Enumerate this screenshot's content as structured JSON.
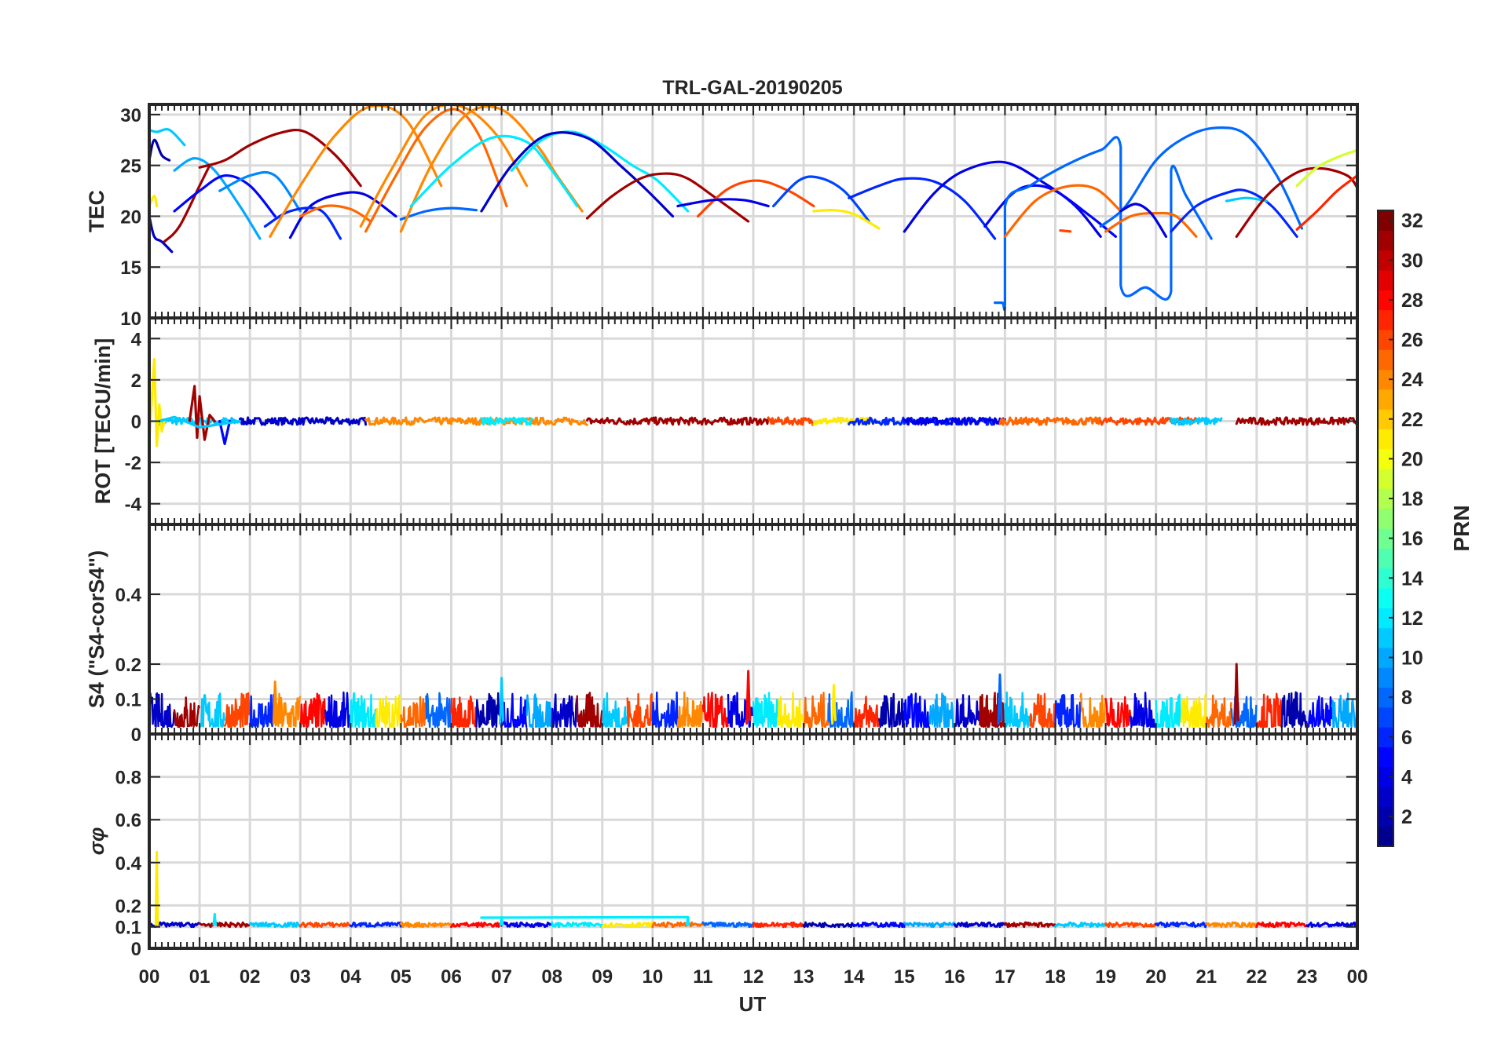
{
  "chart_data": {
    "type": "line",
    "title": "TRL-GAL-20190205",
    "xlabel": "UT",
    "x_ticks": [
      "00",
      "01",
      "02",
      "03",
      "04",
      "05",
      "06",
      "07",
      "08",
      "09",
      "10",
      "11",
      "12",
      "13",
      "14",
      "15",
      "16",
      "17",
      "18",
      "19",
      "20",
      "21",
      "22",
      "23",
      "00"
    ],
    "xlim": [
      0,
      24
    ],
    "grid": true,
    "colorbar": {
      "label": "PRN",
      "range": [
        1,
        32
      ],
      "ticks": [
        "2",
        "4",
        "6",
        "8",
        "10",
        "12",
        "14",
        "16",
        "18",
        "20",
        "22",
        "24",
        "26",
        "28",
        "30",
        "32"
      ],
      "colormap": [
        "#00008f",
        "#0000ff",
        "#0080ff",
        "#00ffff",
        "#80ff80",
        "#ffff00",
        "#ff8000",
        "#ff0000",
        "#800000"
      ]
    },
    "panels": [
      {
        "id": "tec",
        "ylabel": "TEC",
        "ylim": [
          10,
          31
        ],
        "y_ticks": [
          "10",
          "15",
          "20",
          "25",
          "30"
        ],
        "series": [
          {
            "prn": 3,
            "x": [
              0.0,
              0.1,
              0.25,
              0.45
            ],
            "y": [
              20,
              18,
              17.5,
              16.5
            ]
          },
          {
            "prn": 2,
            "x": [
              0.0,
              0.1,
              0.25,
              0.4
            ],
            "y": [
              25.5,
              27.5,
              26,
              25.5
            ]
          },
          {
            "prn": 11,
            "x": [
              0.0,
              0.15,
              0.4,
              0.7
            ],
            "y": [
              28.5,
              28.3,
              28.5,
              27
            ]
          },
          {
            "prn": 21,
            "x": [
              0.0,
              0.1,
              0.15
            ],
            "y": [
              21,
              22,
              21
            ]
          },
          {
            "prn": 10,
            "x": [
              0.5,
              0.9,
              1.3,
              1.8,
              2.2
            ],
            "y": [
              24.5,
              25.7,
              24.5,
              21,
              17.8
            ]
          },
          {
            "prn": 31,
            "x": [
              0.3,
              0.6,
              1.0,
              1.2
            ],
            "y": [
              17.5,
              19,
              23,
              25
            ]
          },
          {
            "prn": 5,
            "x": [
              0.5,
              1.0,
              1.5,
              2.0,
              2.5
            ],
            "y": [
              20.5,
              22.5,
              24,
              23,
              20
            ]
          },
          {
            "prn": 31,
            "x": [
              1.0,
              1.5,
              2.0,
              2.6,
              3.1,
              3.7,
              4.2
            ],
            "y": [
              24.8,
              25.5,
              27,
              28.2,
              28.3,
              26,
              23
            ]
          },
          {
            "prn": 9,
            "x": [
              1.4,
              2.0,
              2.5,
              3.0
            ],
            "y": [
              22.5,
              24,
              24,
              20.5
            ]
          },
          {
            "prn": 4,
            "x": [
              2.8,
              3.2,
              3.8,
              4.3,
              4.9
            ],
            "y": [
              17.9,
              21,
              22.2,
              22.1,
              20
            ]
          },
          {
            "prn": 6,
            "x": [
              2.3,
              2.8,
              3.4,
              3.8
            ],
            "y": [
              19,
              20.5,
              20.6,
              17.8
            ]
          },
          {
            "prn": 25,
            "x": [
              3.0,
              3.5,
              4.0,
              4.4
            ],
            "y": [
              20,
              21,
              20.7,
              19.5
            ]
          },
          {
            "prn": 24,
            "x": [
              2.4,
              3.0,
              3.7,
              4.4,
              5.1,
              5.8
            ],
            "y": [
              18,
              23,
              28,
              30.8,
              29.5,
              23
            ]
          },
          {
            "prn": 25,
            "x": [
              4.3,
              4.9,
              5.5,
              6.1,
              6.6,
              7.1
            ],
            "y": [
              18.5,
              24,
              28.8,
              30.5,
              27.5,
              21
            ]
          },
          {
            "prn": 8,
            "x": [
              5.0,
              5.5,
              6.0,
              6.5
            ],
            "y": [
              19.7,
              20.5,
              20.8,
              20.6
            ]
          },
          {
            "prn": 24,
            "x": [
              4.2,
              4.8,
              5.5,
              6.2,
              6.9,
              7.5
            ],
            "y": [
              19,
              24.5,
              30,
              30.8,
              28,
              23
            ]
          },
          {
            "prn": 24,
            "x": [
              5.0,
              5.6,
              6.3,
              7.0,
              7.7,
              8.1,
              8.6
            ],
            "y": [
              18.5,
              25,
              30,
              30.5,
              27,
              24,
              20.5
            ]
          },
          {
            "prn": 12,
            "x": [
              5.2,
              6.0,
              6.8,
              7.5,
              8.0,
              8.5
            ],
            "y": [
              21,
              25,
              27.7,
              27.3,
              24.5,
              21
            ]
          },
          {
            "prn": 12,
            "x": [
              7.2,
              7.8,
              8.4,
              9.0,
              9.6,
              10.1,
              10.7
            ],
            "y": [
              24.5,
              27.5,
              28.3,
              27,
              25,
              23.5,
              20.5
            ]
          },
          {
            "prn": 3,
            "x": [
              6.6,
              7.2,
              7.9,
              8.7,
              9.4,
              9.9,
              10.4
            ],
            "y": [
              20.5,
              25,
              28,
              27.7,
              24.8,
              22.5,
              20
            ]
          },
          {
            "prn": 31,
            "x": [
              8.7,
              9.2,
              9.8,
              10.3,
              10.7,
              11.2,
              11.9
            ],
            "y": [
              19.8,
              22,
              23.8,
              24.2,
              23.7,
              22,
              19.5
            ]
          },
          {
            "prn": 26,
            "x": [
              10.9,
              11.5,
              12.1,
              12.7,
              13.2
            ],
            "y": [
              20,
              22.7,
              23.5,
              22.5,
              21
            ]
          },
          {
            "prn": 4,
            "x": [
              10.5,
              11.2,
              11.8,
              12.3
            ],
            "y": [
              21,
              21.6,
              21.6,
              21
            ]
          },
          {
            "prn": 7,
            "x": [
              12.4,
              12.9,
              13.3,
              13.8,
              14.3
            ],
            "y": [
              21,
              23.5,
              23.8,
              22.5,
              19.5
            ]
          },
          {
            "prn": 21,
            "x": [
              13.2,
              13.6,
              14.0,
              14.5
            ],
            "y": [
              20.5,
              20.6,
              20.2,
              18.8
            ]
          },
          {
            "prn": 6,
            "x": [
              13.9,
              14.5,
              15.0,
              15.6,
              16.2,
              16.8
            ],
            "y": [
              21.8,
              23,
              23.7,
              23.4,
              21.5,
              17.8
            ]
          },
          {
            "prn": 4,
            "x": [
              15.0,
              15.6,
              16.2,
              17.0,
              17.8,
              18.4,
              18.9
            ],
            "y": [
              18.5,
              22.3,
              24.5,
              25.3,
              23.2,
              21,
              18
            ]
          },
          {
            "prn": 5,
            "x": [
              16.6,
              17.1,
              17.5,
              18.0,
              18.7,
              19.2
            ],
            "y": [
              19,
              22,
              23,
              22.5,
              20,
              18
            ]
          },
          {
            "prn": 8,
            "x": [
              16.8,
              16.95,
              17.0,
              17.0,
              17.5,
              18.2,
              18.9,
              19.3,
              19.3,
              19.8,
              20.3,
              20.3,
              20.6,
              21.1
            ],
            "y": [
              11.5,
              11.5,
              11.5,
              21,
              23,
              25,
              26.5,
              26.8,
              13.2,
              13,
              12.6,
              24.5,
              22,
              17.8
            ]
          },
          {
            "prn": 25,
            "x": [
              17.0,
              17.6,
              18.2,
              18.8,
              19.3
            ],
            "y": [
              18,
              21.5,
              22.9,
              22.7,
              20.5
            ]
          },
          {
            "prn": 26,
            "x": [
              18.1,
              18.3
            ],
            "y": [
              18.6,
              18.5
            ]
          },
          {
            "prn": 25,
            "x": [
              19.0,
              19.5,
              20.0,
              20.4,
              20.8
            ],
            "y": [
              18.5,
              20,
              20.3,
              20,
              18
            ]
          },
          {
            "prn": 8,
            "x": [
              18.9,
              19.4,
              20.0,
              20.6,
              21.2,
              21.8,
              22.4,
              22.9
            ],
            "y": [
              19,
              21,
              25.5,
              27.8,
              28.7,
              28,
              24,
              18.8
            ]
          },
          {
            "prn": 4,
            "x": [
              19.3,
              19.6,
              19.9,
              20.2
            ],
            "y": [
              20.5,
              21.2,
              20.3,
              18
            ]
          },
          {
            "prn": 6,
            "x": [
              20.3,
              20.8,
              21.4,
              21.8,
              22.3,
              22.8
            ],
            "y": [
              18.5,
              21,
              22.3,
              22.5,
              21,
              18
            ]
          },
          {
            "prn": 11,
            "x": [
              21.4,
              21.8,
              22.2
            ],
            "y": [
              21.5,
              21.8,
              21.5
            ]
          },
          {
            "prn": 31,
            "x": [
              21.6,
              22.2,
              22.8,
              23.3,
              23.8,
              24.0
            ],
            "y": [
              18,
              22,
              24.3,
              24.7,
              24,
              22.8
            ]
          },
          {
            "prn": 27,
            "x": [
              22.8,
              23.2,
              23.6,
              24.0
            ],
            "y": [
              18.7,
              20.5,
              22.5,
              24
            ]
          },
          {
            "prn": 19,
            "x": [
              22.8,
              23.2,
              23.6,
              24.0
            ],
            "y": [
              23,
              24.8,
              25.8,
              26.5
            ]
          }
        ]
      },
      {
        "id": "rot",
        "ylabel": "ROT [TECU/min]",
        "ylim": [
          -5,
          5
        ],
        "y_ticks": [
          "-4",
          "-2",
          "0",
          "2",
          "4"
        ],
        "series": [
          {
            "prn": 21,
            "x": [
              0.0,
              0.1,
              0.15,
              0.2,
              0.25,
              0.3
            ],
            "y": [
              -1,
              3,
              -1.2,
              0.8,
              -0.5,
              0
            ]
          },
          {
            "prn": 31,
            "x": [
              0.8,
              0.9,
              0.95,
              1.0,
              1.1,
              1.2,
              1.3
            ],
            "y": [
              0,
              1.7,
              -0.8,
              1.2,
              -0.9,
              0.3,
              0
            ]
          },
          {
            "prn": 5,
            "x": [
              1.4,
              1.5,
              1.6
            ],
            "y": [
              0,
              -1.1,
              0
            ]
          },
          {
            "prn": 11,
            "x": [
              0.2,
              0.5,
              1.0,
              1.8
            ],
            "y": [
              0,
              0.2,
              -0.3,
              0
            ]
          }
        ],
        "baseline_value": 0
      },
      {
        "id": "s4",
        "ylabel": "S4 (\"S4-corS4\")",
        "ylim": [
          0,
          0.6
        ],
        "y_ticks": [
          "0",
          "0.1",
          "0.2",
          "0.4"
        ],
        "typical_range": [
          0.02,
          0.12
        ],
        "peaks": [
          {
            "prn": 31,
            "x": 21.6,
            "y": 0.2
          },
          {
            "prn": 28,
            "x": 11.9,
            "y": 0.18
          },
          {
            "prn": 8,
            "x": 16.9,
            "y": 0.17
          },
          {
            "prn": 11,
            "x": 7.0,
            "y": 0.16
          },
          {
            "prn": 24,
            "x": 2.5,
            "y": 0.15
          },
          {
            "prn": 21,
            "x": 13.6,
            "y": 0.14
          }
        ]
      },
      {
        "id": "sigma_phi",
        "ylabel": "σφ",
        "ylim": [
          0,
          1
        ],
        "y_ticks": [
          "0",
          "0.1",
          "0.2",
          "0.4",
          "0.6",
          "0.8"
        ],
        "baseline_value": 0.11,
        "peaks": [
          {
            "prn": 21,
            "x": 0.15,
            "y": 0.45
          },
          {
            "prn": 12,
            "x": 1.3,
            "y": 0.16
          },
          {
            "prn": 12,
            "x": 7.0,
            "y": 0.145
          },
          {
            "prn": 12,
            "x": 10.7,
            "y": 0.145
          }
        ]
      }
    ]
  }
}
